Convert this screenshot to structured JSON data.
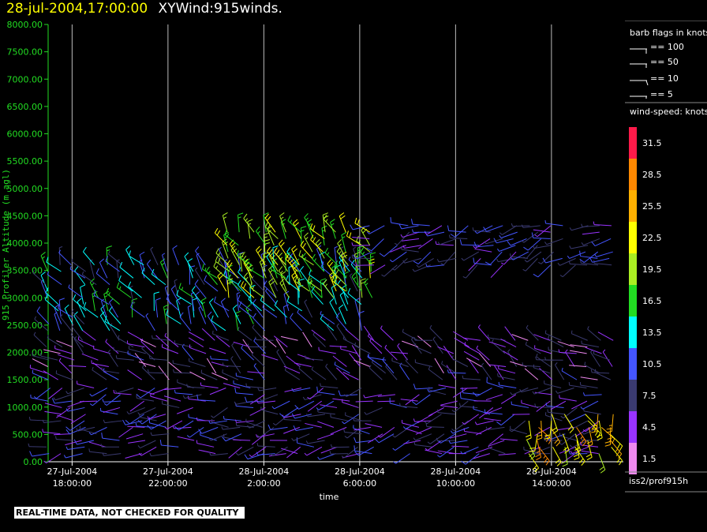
{
  "title": {
    "date": "28-jul-2004,17:00:00",
    "name": "XYWind:915winds."
  },
  "banner": "REAL-TIME DATA, NOT CHECKED FOR QUALITY",
  "source": "iss2/prof915h",
  "legend": {
    "flags_title": "barb flags in knots",
    "flags": [
      "== 100",
      "== 50",
      "== 10",
      "== 5"
    ],
    "speed_title": "wind-speed: knots",
    "levels": [
      {
        "label": "31.5",
        "color": "#ff1a4a"
      },
      {
        "label": "28.5",
        "color": "#ff8800"
      },
      {
        "label": "25.5",
        "color": "#ffb000"
      },
      {
        "label": "22.5",
        "color": "#ffff00"
      },
      {
        "label": "19.5",
        "color": "#aaee22"
      },
      {
        "label": "16.5",
        "color": "#22dd22"
      },
      {
        "label": "13.5",
        "color": "#00ffff"
      },
      {
        "label": "10.5",
        "color": "#4455ff"
      },
      {
        "label": "7.5",
        "color": "#3a3a70"
      },
      {
        "label": "4.5",
        "color": "#9933ff"
      },
      {
        "label": "1.5",
        "color": "#ee88ee"
      }
    ]
  },
  "chart_data": {
    "type": "scatter",
    "title": "XYWind:915winds.",
    "xlabel": "time",
    "ylabel": "915 Profiler Altitude (m agl)",
    "ylim": [
      0,
      8000
    ],
    "y_ticks": [
      "0.00",
      "500.00",
      "1000.00",
      "1500.00",
      "2000.00",
      "2500.00",
      "3000.00",
      "3500.00",
      "4000.00",
      "4500.00",
      "5000.00",
      "5500.00",
      "6000.00",
      "6500.00",
      "7000.00",
      "7500.00",
      "8000.00"
    ],
    "x_ticks": [
      {
        "hour": 18,
        "date": "27-Jul-2004",
        "time": "18:00:00"
      },
      {
        "hour": 22,
        "date": "27-Jul-2004",
        "time": "22:00:00"
      },
      {
        "hour": 26,
        "date": "28-Jul-2004",
        "time": "2:00:00"
      },
      {
        "hour": 30,
        "date": "28-Jul-2004",
        "time": "6:00:00"
      },
      {
        "hour": 34,
        "date": "28-Jul-2004",
        "time": "10:00:00"
      },
      {
        "hour": 38,
        "date": "28-Jul-2004",
        "time": "14:00:00"
      }
    ],
    "xlim_hours": [
      17,
      41
    ],
    "grid_vertical": true,
    "series": [
      {
        "hour_start": 17.0,
        "hour_end": 40.0,
        "alt_min": 150,
        "alt_max": 1450,
        "dir": 260,
        "speed": 7
      },
      {
        "hour_start": 37.0,
        "hour_end": 40.5,
        "alt_min": 150,
        "alt_max": 900,
        "dir": 160,
        "speed": 24
      },
      {
        "hour_start": 17.0,
        "hour_end": 40.5,
        "alt_min": 1500,
        "alt_max": 2300,
        "dir": 300,
        "speed": 6
      },
      {
        "hour_start": 17.0,
        "hour_end": 30.0,
        "alt_min": 2400,
        "alt_max": 3600,
        "dir": 330,
        "speed": 12
      },
      {
        "hour_start": 24.5,
        "hour_end": 30.5,
        "alt_min": 3000,
        "alt_max": 4200,
        "dir": 330,
        "speed": 19
      },
      {
        "hour_start": 30.5,
        "hour_end": 40.5,
        "alt_min": 3600,
        "alt_max": 4400,
        "dir": 250,
        "speed": 8
      }
    ]
  }
}
